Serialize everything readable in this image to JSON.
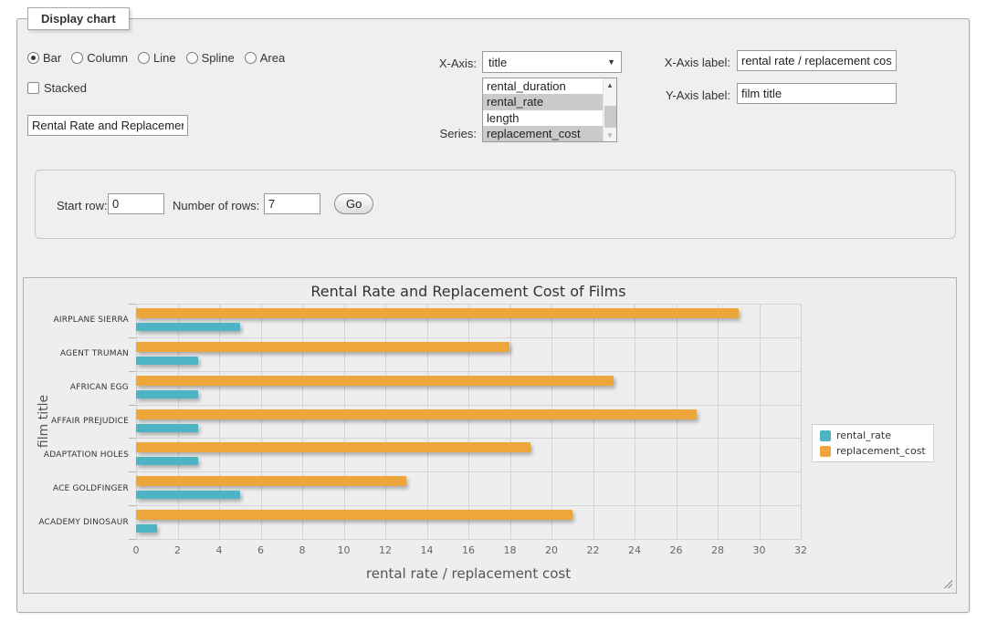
{
  "window": {
    "legend_title": "Display chart"
  },
  "chart_type": {
    "options": [
      {
        "label": "Bar",
        "selected": true
      },
      {
        "label": "Column",
        "selected": false
      },
      {
        "label": "Line",
        "selected": false
      },
      {
        "label": "Spline",
        "selected": false
      },
      {
        "label": "Area",
        "selected": false
      }
    ],
    "stacked_label": "Stacked",
    "stacked_checked": false
  },
  "title_input": {
    "value": "Rental Rate and Replacement Cost of Films"
  },
  "x_axis_picker": {
    "label": "X-Axis:",
    "selected": "title"
  },
  "series_picker": {
    "label": "Series:",
    "options": [
      {
        "label": "rental_duration",
        "selected": false
      },
      {
        "label": "rental_rate",
        "selected": true
      },
      {
        "label": "length",
        "selected": false
      },
      {
        "label": "replacement_cost",
        "selected": true
      }
    ]
  },
  "x_axis_label_field": {
    "label": "X-Axis label:",
    "value": "rental rate / replacement cost"
  },
  "y_axis_label_field": {
    "label": "Y-Axis label:",
    "value": "film title"
  },
  "rows_panel": {
    "start_row_label": "Start row:",
    "start_row_value": "0",
    "num_rows_label": "Number of rows:",
    "num_rows_value": "7",
    "go_label": "Go"
  },
  "chart_data": {
    "type": "bar",
    "title": "Rental Rate and Replacement Cost of Films",
    "xlabel": "rental rate / replacement cost",
    "ylabel": "film title",
    "categories": [
      "AIRPLANE SIERRA",
      "AGENT TRUMAN",
      "AFRICAN EGG",
      "AFFAIR PREJUDICE",
      "ADAPTATION HOLES",
      "ACE GOLDFINGER",
      "ACADEMY DINOSAUR"
    ],
    "series": [
      {
        "name": "rental_rate",
        "color": "#4db4c6",
        "values": [
          4.99,
          2.99,
          2.99,
          2.99,
          2.99,
          4.99,
          0.99
        ]
      },
      {
        "name": "replacement_cost",
        "color": "#eda63c",
        "values": [
          28.99,
          17.99,
          22.99,
          26.99,
          18.99,
          12.99,
          20.99
        ]
      }
    ],
    "xlim": [
      0,
      32
    ],
    "x_tick_interval": 2,
    "grid": true,
    "legend_position": "right"
  }
}
